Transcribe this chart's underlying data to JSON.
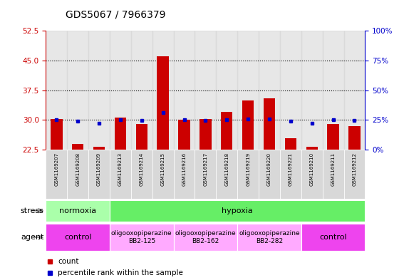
{
  "title": "GDS5067 / 7966379",
  "samples": [
    "GSM1169207",
    "GSM1169208",
    "GSM1169209",
    "GSM1169213",
    "GSM1169214",
    "GSM1169215",
    "GSM1169216",
    "GSM1169217",
    "GSM1169218",
    "GSM1169219",
    "GSM1169220",
    "GSM1169221",
    "GSM1169210",
    "GSM1169211",
    "GSM1169212"
  ],
  "counts": [
    30.2,
    24.0,
    23.2,
    30.7,
    29.0,
    46.0,
    30.1,
    30.3,
    32.0,
    35.0,
    35.5,
    25.5,
    23.2,
    29.0,
    28.5
  ],
  "count_base": 22.5,
  "percentile_ranks_pct": [
    25.0,
    24.0,
    22.5,
    25.5,
    24.5,
    31.0,
    25.0,
    24.5,
    25.0,
    26.0,
    26.0,
    24.0,
    22.5,
    25.0,
    24.5
  ],
  "ylim_left": [
    22.5,
    52.5
  ],
  "yticks_left": [
    22.5,
    30.0,
    37.5,
    45.0,
    52.5
  ],
  "ylim_right": [
    0,
    100
  ],
  "yticks_right": [
    0,
    25,
    50,
    75,
    100
  ],
  "ytick_right_labels": [
    "0%",
    "25%",
    "50%",
    "75%",
    "100%"
  ],
  "bar_color": "#cc0000",
  "square_color": "#0000cc",
  "bg_color": "#ffffff",
  "axis_color_left": "#cc0000",
  "axis_color_right": "#0000cc",
  "stress_groups": [
    {
      "text": "normoxia",
      "start": 0,
      "end": 3,
      "color": "#aaffaa"
    },
    {
      "text": "hypoxia",
      "start": 3,
      "end": 15,
      "color": "#66ee66"
    }
  ],
  "agent_groups": [
    {
      "text": "control",
      "start": 0,
      "end": 3,
      "color": "#ee44ee",
      "fontsize": 8
    },
    {
      "text": "oligooxopiperazine\nBB2-125",
      "start": 3,
      "end": 6,
      "color": "#ffaaff",
      "fontsize": 6.5
    },
    {
      "text": "oligooxopiperazine\nBB2-162",
      "start": 6,
      "end": 9,
      "color": "#ffaaff",
      "fontsize": 6.5
    },
    {
      "text": "oligooxopiperazine\nBB2-282",
      "start": 9,
      "end": 12,
      "color": "#ffaaff",
      "fontsize": 6.5
    },
    {
      "text": "control",
      "start": 12,
      "end": 15,
      "color": "#ee44ee",
      "fontsize": 8
    }
  ],
  "dotted_line_color": "#000000",
  "grid_yticks": [
    30.0,
    37.5,
    45.0
  ],
  "bar_width": 0.55
}
